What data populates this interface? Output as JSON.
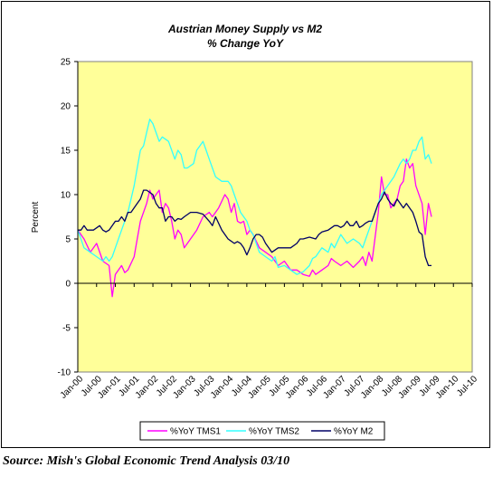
{
  "chart_data": {
    "type": "line",
    "title": "Austrian Money Supply vs M2",
    "subtitle": "% Change YoY",
    "ylabel": "Percent",
    "xlabel": "",
    "ylim": [
      -10,
      25
    ],
    "yticks": [
      -10,
      -5,
      0,
      5,
      10,
      15,
      20,
      25
    ],
    "x_tick_labels": [
      "Jan-00",
      "Jul-00",
      "Jan-01",
      "Jul-01",
      "Jan-02",
      "Jul-02",
      "Jan-03",
      "Jul-03",
      "Jan-04",
      "Jul-04",
      "Jan-05",
      "Jul-05",
      "Jan-06",
      "Jul-06",
      "Jan-07",
      "Jul-07",
      "Jan-08",
      "Jul-08",
      "Jan-09",
      "Jul-09",
      "Jan-10",
      "Jul-10"
    ],
    "x_unit": "months since Jan-00",
    "xlim": [
      0,
      126
    ],
    "plot_background": "#ffff99",
    "legend_position": "bottom",
    "series": [
      {
        "name": "%YoY TMS1",
        "color": "#ff00ff",
        "points": [
          [
            0,
            6
          ],
          [
            2,
            5
          ],
          [
            4,
            3.5
          ],
          [
            6,
            4.5
          ],
          [
            8,
            2.5
          ],
          [
            10,
            2
          ],
          [
            11,
            -1.5
          ],
          [
            12,
            1
          ],
          [
            14,
            2
          ],
          [
            15,
            1.2
          ],
          [
            16,
            1.5
          ],
          [
            18,
            3
          ],
          [
            19,
            5
          ],
          [
            20,
            7
          ],
          [
            22,
            9
          ],
          [
            23,
            10.5
          ],
          [
            24,
            9.5
          ],
          [
            25,
            10
          ],
          [
            26,
            10.5
          ],
          [
            27,
            8
          ],
          [
            28,
            9
          ],
          [
            29,
            8.5
          ],
          [
            30,
            7
          ],
          [
            31,
            5
          ],
          [
            32,
            6
          ],
          [
            33,
            5.5
          ],
          [
            34,
            4
          ],
          [
            36,
            5
          ],
          [
            38,
            6
          ],
          [
            40,
            7.5
          ],
          [
            42,
            8
          ],
          [
            43,
            7.5
          ],
          [
            45,
            8.5
          ],
          [
            47,
            10
          ],
          [
            48,
            9.5
          ],
          [
            49,
            8
          ],
          [
            50,
            9
          ],
          [
            51,
            7
          ],
          [
            52,
            6.8
          ],
          [
            53,
            7
          ],
          [
            54,
            5.5
          ],
          [
            55,
            6
          ],
          [
            56,
            5.5
          ],
          [
            58,
            4
          ],
          [
            60,
            3.5
          ],
          [
            62,
            3
          ],
          [
            63,
            2.5
          ],
          [
            64,
            2
          ],
          [
            66,
            2.5
          ],
          [
            68,
            1.5
          ],
          [
            70,
            1.5
          ],
          [
            72,
            1
          ],
          [
            74,
            0.8
          ],
          [
            75,
            1.5
          ],
          [
            76,
            1
          ],
          [
            78,
            1.5
          ],
          [
            80,
            2
          ],
          [
            81,
            2.8
          ],
          [
            82,
            2.5
          ],
          [
            84,
            2
          ],
          [
            86,
            2.5
          ],
          [
            88,
            1.8
          ],
          [
            90,
            2.5
          ],
          [
            91,
            3
          ],
          [
            92,
            2
          ],
          [
            93,
            3.5
          ],
          [
            94,
            2.5
          ],
          [
            96,
            8
          ],
          [
            97,
            12
          ],
          [
            98,
            10
          ],
          [
            99,
            10
          ],
          [
            100,
            8.5
          ],
          [
            102,
            9.5
          ],
          [
            103,
            11
          ],
          [
            104,
            11.5
          ],
          [
            105,
            14
          ],
          [
            106,
            13
          ],
          [
            107,
            13.5
          ],
          [
            108,
            11
          ],
          [
            110,
            9
          ],
          [
            111,
            5.5
          ],
          [
            112,
            9
          ],
          [
            113,
            7.5
          ]
        ]
      },
      {
        "name": "%YoY TMS2",
        "color": "#33ffff",
        "points": [
          [
            0,
            6
          ],
          [
            2,
            4
          ],
          [
            4,
            3.5
          ],
          [
            6,
            3
          ],
          [
            8,
            2.5
          ],
          [
            9,
            3
          ],
          [
            10,
            2.5
          ],
          [
            11,
            3
          ],
          [
            12,
            4
          ],
          [
            14,
            6
          ],
          [
            16,
            8
          ],
          [
            18,
            11
          ],
          [
            19,
            13
          ],
          [
            20,
            15
          ],
          [
            21,
            15.5
          ],
          [
            22,
            17
          ],
          [
            23,
            18.5
          ],
          [
            24,
            18
          ],
          [
            25,
            17
          ],
          [
            26,
            16
          ],
          [
            27,
            16.5
          ],
          [
            29,
            16
          ],
          [
            30,
            15
          ],
          [
            31,
            14
          ],
          [
            32,
            15
          ],
          [
            33,
            14.5
          ],
          [
            34,
            13
          ],
          [
            35,
            13
          ],
          [
            37,
            13.5
          ],
          [
            38,
            15
          ],
          [
            39,
            15.5
          ],
          [
            40,
            16
          ],
          [
            41,
            15
          ],
          [
            42,
            14
          ],
          [
            43,
            13
          ],
          [
            44,
            12
          ],
          [
            46,
            11.5
          ],
          [
            48,
            11.5
          ],
          [
            49,
            11
          ],
          [
            50,
            10
          ],
          [
            51,
            9
          ],
          [
            52,
            8
          ],
          [
            54,
            7
          ],
          [
            55,
            6
          ],
          [
            56,
            5.5
          ],
          [
            58,
            3.5
          ],
          [
            60,
            3
          ],
          [
            62,
            2.5
          ],
          [
            63,
            3
          ],
          [
            64,
            1.8
          ],
          [
            66,
            2
          ],
          [
            68,
            1.5
          ],
          [
            70,
            1
          ],
          [
            72,
            1.3
          ],
          [
            74,
            2
          ],
          [
            75,
            2.8
          ],
          [
            76,
            3
          ],
          [
            78,
            4
          ],
          [
            80,
            3.5
          ],
          [
            81,
            4.5
          ],
          [
            82,
            4
          ],
          [
            84,
            5.5
          ],
          [
            86,
            4.5
          ],
          [
            88,
            5
          ],
          [
            90,
            4.5
          ],
          [
            91,
            4
          ],
          [
            92,
            5
          ],
          [
            93,
            6
          ],
          [
            95,
            8
          ],
          [
            97,
            10
          ],
          [
            99,
            11
          ],
          [
            101,
            12
          ],
          [
            103,
            13.5
          ],
          [
            104,
            14
          ],
          [
            105,
            13.5
          ],
          [
            106,
            14
          ],
          [
            107,
            15
          ],
          [
            108,
            15
          ],
          [
            109,
            16
          ],
          [
            110,
            16.5
          ],
          [
            111,
            14
          ],
          [
            112,
            14.5
          ],
          [
            113,
            13.5
          ]
        ]
      },
      {
        "name": "%YoY M2",
        "color": "#000066",
        "points": [
          [
            0,
            6
          ],
          [
            1,
            6
          ],
          [
            2,
            6.5
          ],
          [
            3,
            6
          ],
          [
            5,
            6
          ],
          [
            7,
            6.5
          ],
          [
            8,
            6
          ],
          [
            9,
            5.8
          ],
          [
            10,
            6
          ],
          [
            11,
            6.5
          ],
          [
            12,
            7
          ],
          [
            13,
            7
          ],
          [
            14,
            7.5
          ],
          [
            15,
            7
          ],
          [
            16,
            8
          ],
          [
            17,
            8
          ],
          [
            19,
            9
          ],
          [
            20,
            9.5
          ],
          [
            21,
            10.5
          ],
          [
            22,
            10.5
          ],
          [
            24,
            10
          ],
          [
            25,
            9
          ],
          [
            26,
            8.5
          ],
          [
            27,
            8.5
          ],
          [
            28,
            7
          ],
          [
            29,
            7.5
          ],
          [
            30,
            7.5
          ],
          [
            31,
            7
          ],
          [
            32,
            7.3
          ],
          [
            33,
            7.2
          ],
          [
            34,
            7.5
          ],
          [
            36,
            8
          ],
          [
            38,
            8
          ],
          [
            40,
            7.8
          ],
          [
            42,
            7
          ],
          [
            43,
            6.5
          ],
          [
            44,
            7.5
          ],
          [
            46,
            6
          ],
          [
            48,
            5
          ],
          [
            50,
            4.5
          ],
          [
            51,
            4.7
          ],
          [
            52,
            4.5
          ],
          [
            53,
            4
          ],
          [
            54,
            3.2
          ],
          [
            55,
            4
          ],
          [
            56,
            5
          ],
          [
            57,
            5.5
          ],
          [
            58,
            5.5
          ],
          [
            59,
            5.2
          ],
          [
            60,
            4.5
          ],
          [
            61,
            4
          ],
          [
            62,
            3.5
          ],
          [
            64,
            4
          ],
          [
            66,
            4
          ],
          [
            68,
            4
          ],
          [
            70,
            4.5
          ],
          [
            71,
            5
          ],
          [
            72,
            5
          ],
          [
            74,
            5.2
          ],
          [
            76,
            5
          ],
          [
            77,
            5.5
          ],
          [
            78,
            5.8
          ],
          [
            80,
            6
          ],
          [
            82,
            6.5
          ],
          [
            83,
            6.5
          ],
          [
            84,
            6.3
          ],
          [
            85,
            6.5
          ],
          [
            86,
            7
          ],
          [
            87,
            6.5
          ],
          [
            88,
            6.5
          ],
          [
            89,
            7
          ],
          [
            90,
            6.3
          ],
          [
            91,
            6.5
          ],
          [
            92,
            6.8
          ],
          [
            93,
            7
          ],
          [
            94,
            7
          ],
          [
            95,
            8
          ],
          [
            96,
            9
          ],
          [
            97,
            9.5
          ],
          [
            98,
            10.3
          ],
          [
            99,
            9.5
          ],
          [
            100,
            9
          ],
          [
            101,
            8.7
          ],
          [
            102,
            9.5
          ],
          [
            103,
            9
          ],
          [
            104,
            8.5
          ],
          [
            105,
            9
          ],
          [
            106,
            8.5
          ],
          [
            107,
            8
          ],
          [
            108,
            7
          ],
          [
            109,
            5.8
          ],
          [
            110,
            5.5
          ],
          [
            111,
            3
          ],
          [
            112,
            2
          ],
          [
            113,
            2
          ]
        ]
      }
    ]
  },
  "source_text": "Source: Mish's Global Economic Trend Analysis     03/10"
}
